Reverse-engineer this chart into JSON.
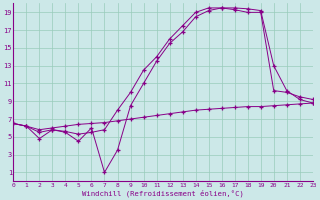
{
  "xlabel": "Windchill (Refroidissement éolien,°C)",
  "bg_color": "#cce8e8",
  "line_color": "#880088",
  "grid_color": "#99ccbb",
  "xlim": [
    0,
    23
  ],
  "ylim": [
    0,
    20
  ],
  "xticks": [
    0,
    1,
    2,
    3,
    4,
    5,
    6,
    7,
    8,
    9,
    10,
    11,
    12,
    13,
    14,
    15,
    16,
    17,
    18,
    19,
    20,
    21,
    22,
    23
  ],
  "yticks": [
    1,
    3,
    5,
    7,
    9,
    11,
    13,
    15,
    17,
    19
  ],
  "line1_x": [
    0,
    1,
    2,
    3,
    4,
    5,
    6,
    7,
    8,
    9,
    10,
    11,
    12,
    13,
    14,
    15,
    16,
    17,
    18,
    19,
    20,
    21,
    22,
    23
  ],
  "line1_y": [
    6.5,
    6.2,
    5.8,
    6.0,
    6.2,
    6.4,
    6.5,
    6.6,
    6.8,
    7.0,
    7.2,
    7.4,
    7.6,
    7.8,
    8.0,
    8.1,
    8.2,
    8.3,
    8.4,
    8.4,
    8.5,
    8.6,
    8.7,
    8.8
  ],
  "line2_x": [
    0,
    1,
    2,
    3,
    4,
    5,
    6,
    7,
    8,
    9,
    10,
    11,
    12,
    13,
    14,
    15,
    16,
    17,
    18,
    19,
    20,
    21,
    22,
    23
  ],
  "line2_y": [
    6.5,
    6.2,
    4.8,
    5.8,
    5.5,
    4.5,
    6.0,
    1.0,
    3.5,
    8.5,
    11.0,
    13.5,
    15.5,
    16.8,
    18.5,
    19.2,
    19.5,
    19.5,
    19.4,
    19.2,
    13.0,
    10.2,
    9.2,
    8.8
  ],
  "line3_x": [
    0,
    1,
    2,
    3,
    4,
    5,
    6,
    7,
    8,
    9,
    10,
    11,
    12,
    13,
    14,
    15,
    16,
    17,
    18,
    19,
    20,
    21,
    22,
    23
  ],
  "line3_y": [
    6.5,
    6.2,
    5.5,
    5.8,
    5.6,
    5.3,
    5.5,
    5.8,
    8.0,
    10.0,
    12.5,
    14.0,
    16.0,
    17.5,
    19.0,
    19.5,
    19.5,
    19.3,
    19.0,
    19.0,
    10.2,
    10.0,
    9.5,
    9.2
  ]
}
